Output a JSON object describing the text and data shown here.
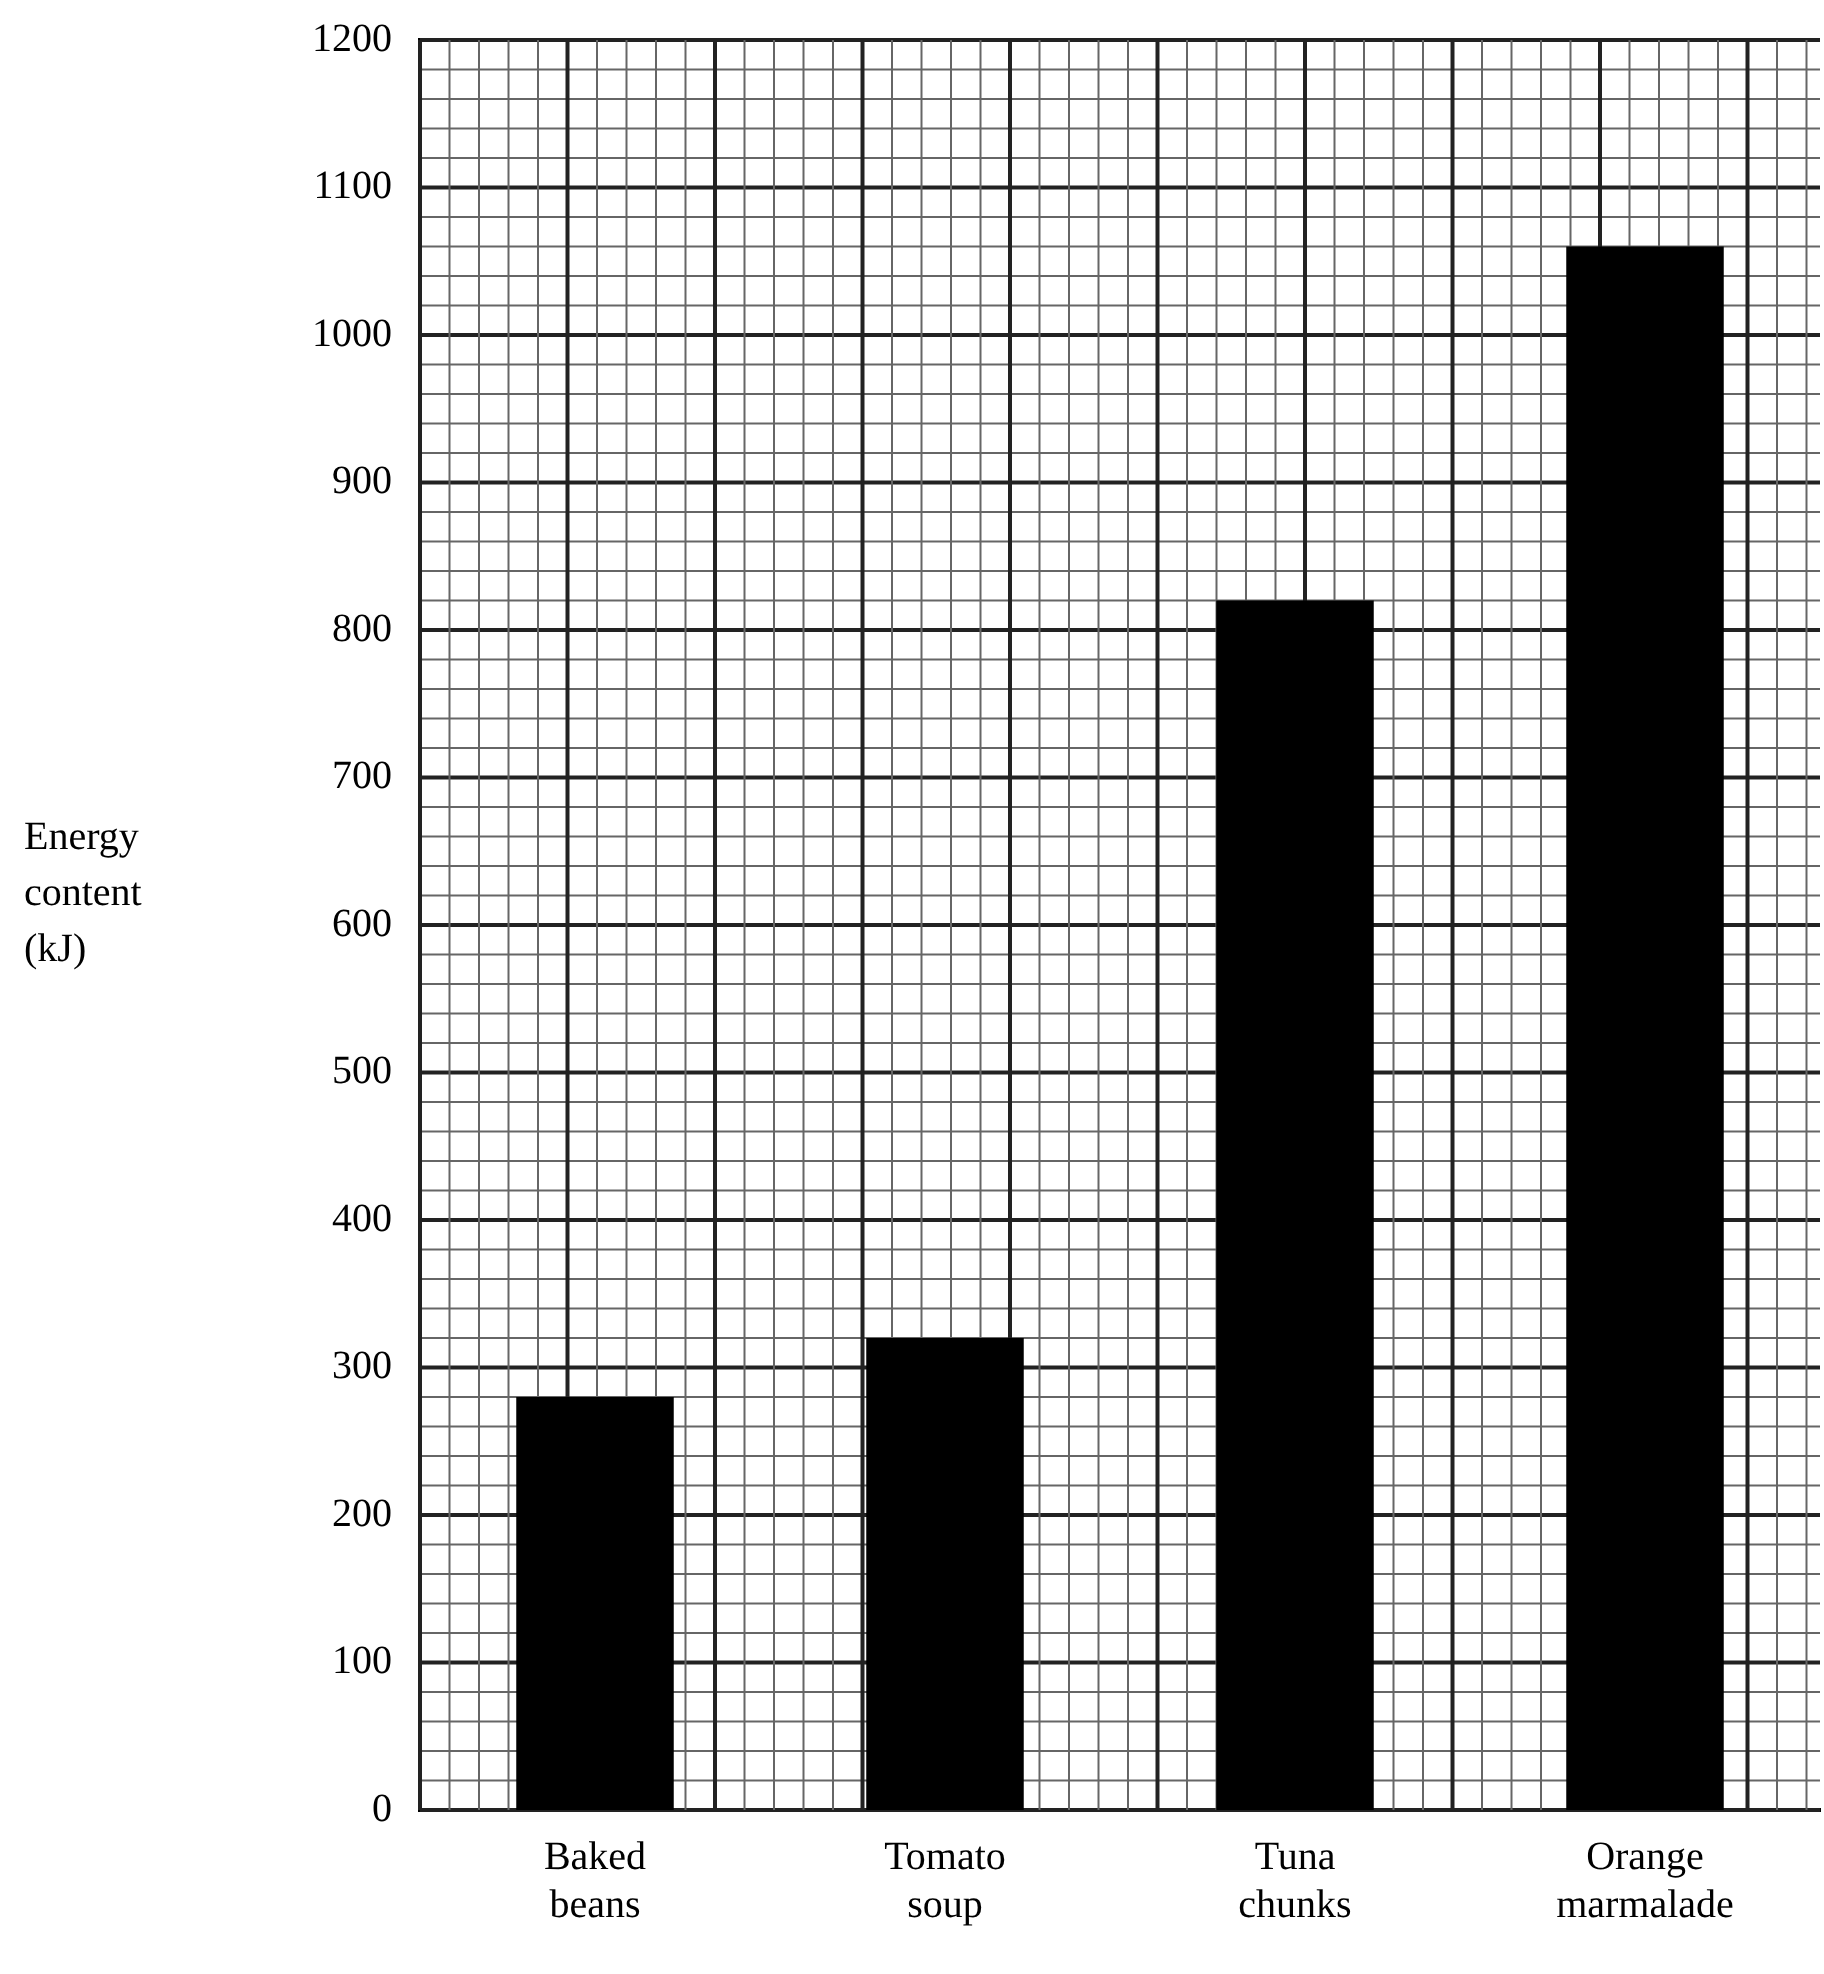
{
  "chart_data": {
    "type": "bar",
    "ylabel": "Energy content (kJ)",
    "categories": [
      "Baked beans",
      "Tomato soup",
      "Tuna chunks",
      "Orange marmalade"
    ],
    "values": [
      280,
      320,
      820,
      1060
    ],
    "color": "#000000",
    "ylim": [
      0,
      1200
    ],
    "yticks": [
      0,
      100,
      200,
      300,
      400,
      500,
      600,
      700,
      800,
      900,
      1000,
      1100,
      1200
    ],
    "grid": true
  }
}
